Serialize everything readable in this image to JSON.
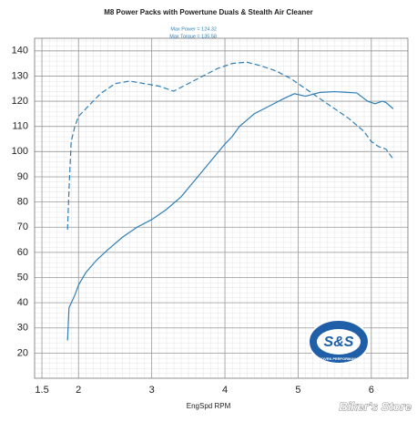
{
  "chart_data": {
    "type": "line",
    "title": "M8 Power Packs with Powertune Duals & Stealth Air Cleaner",
    "annotations": [
      "Max Power = 124.32",
      "Max Torque = 135.58"
    ],
    "x_label": "EngSpd RPM",
    "logo": {
      "text": "S&S",
      "subtext": "PROVEN PERFORMANCE"
    },
    "watermark": "Biker's Store",
    "xlim": [
      1.4,
      6.5
    ],
    "xticks": [
      1.5,
      2,
      3,
      4,
      5,
      6
    ],
    "ylim": [
      10,
      145
    ],
    "yticks": [
      20,
      30,
      40,
      50,
      60,
      70,
      80,
      90,
      100,
      110,
      120,
      130,
      140
    ],
    "grid": true,
    "series": [
      {
        "name": "Power",
        "color": "#2e7fb8",
        "dash": false,
        "x": [
          1.85,
          1.87,
          1.95,
          2.0,
          2.1,
          2.25,
          2.4,
          2.6,
          2.8,
          3.0,
          3.2,
          3.4,
          3.6,
          3.8,
          4.0,
          4.1,
          4.2,
          4.4,
          4.6,
          4.8,
          4.95,
          5.1,
          5.3,
          5.5,
          5.8,
          5.95,
          6.05,
          6.15,
          6.2,
          6.3
        ],
        "values": [
          25,
          38,
          43,
          47,
          52,
          57,
          61,
          66,
          70,
          73,
          77,
          82,
          89,
          96,
          103,
          106,
          110,
          115,
          118,
          121,
          123,
          122,
          123.5,
          123.8,
          123.3,
          120,
          119,
          120,
          119.5,
          117
        ]
      },
      {
        "name": "Torque",
        "color": "#2e7fb8",
        "dash": true,
        "x": [
          1.85,
          1.87,
          1.9,
          1.95,
          2.0,
          2.1,
          2.3,
          2.5,
          2.7,
          2.9,
          3.1,
          3.3,
          3.5,
          3.7,
          3.9,
          4.1,
          4.3,
          4.5,
          4.7,
          4.9,
          5.1,
          5.3,
          5.5,
          5.7,
          5.9,
          6.0,
          6.1,
          6.2,
          6.3
        ],
        "values": [
          69,
          85,
          104,
          110,
          114,
          117,
          123,
          127,
          128,
          127,
          126,
          124,
          127,
          130,
          133,
          135,
          135.5,
          134,
          132,
          129,
          125,
          121,
          117,
          113,
          108,
          104,
          102,
          101,
          97
        ]
      }
    ]
  }
}
